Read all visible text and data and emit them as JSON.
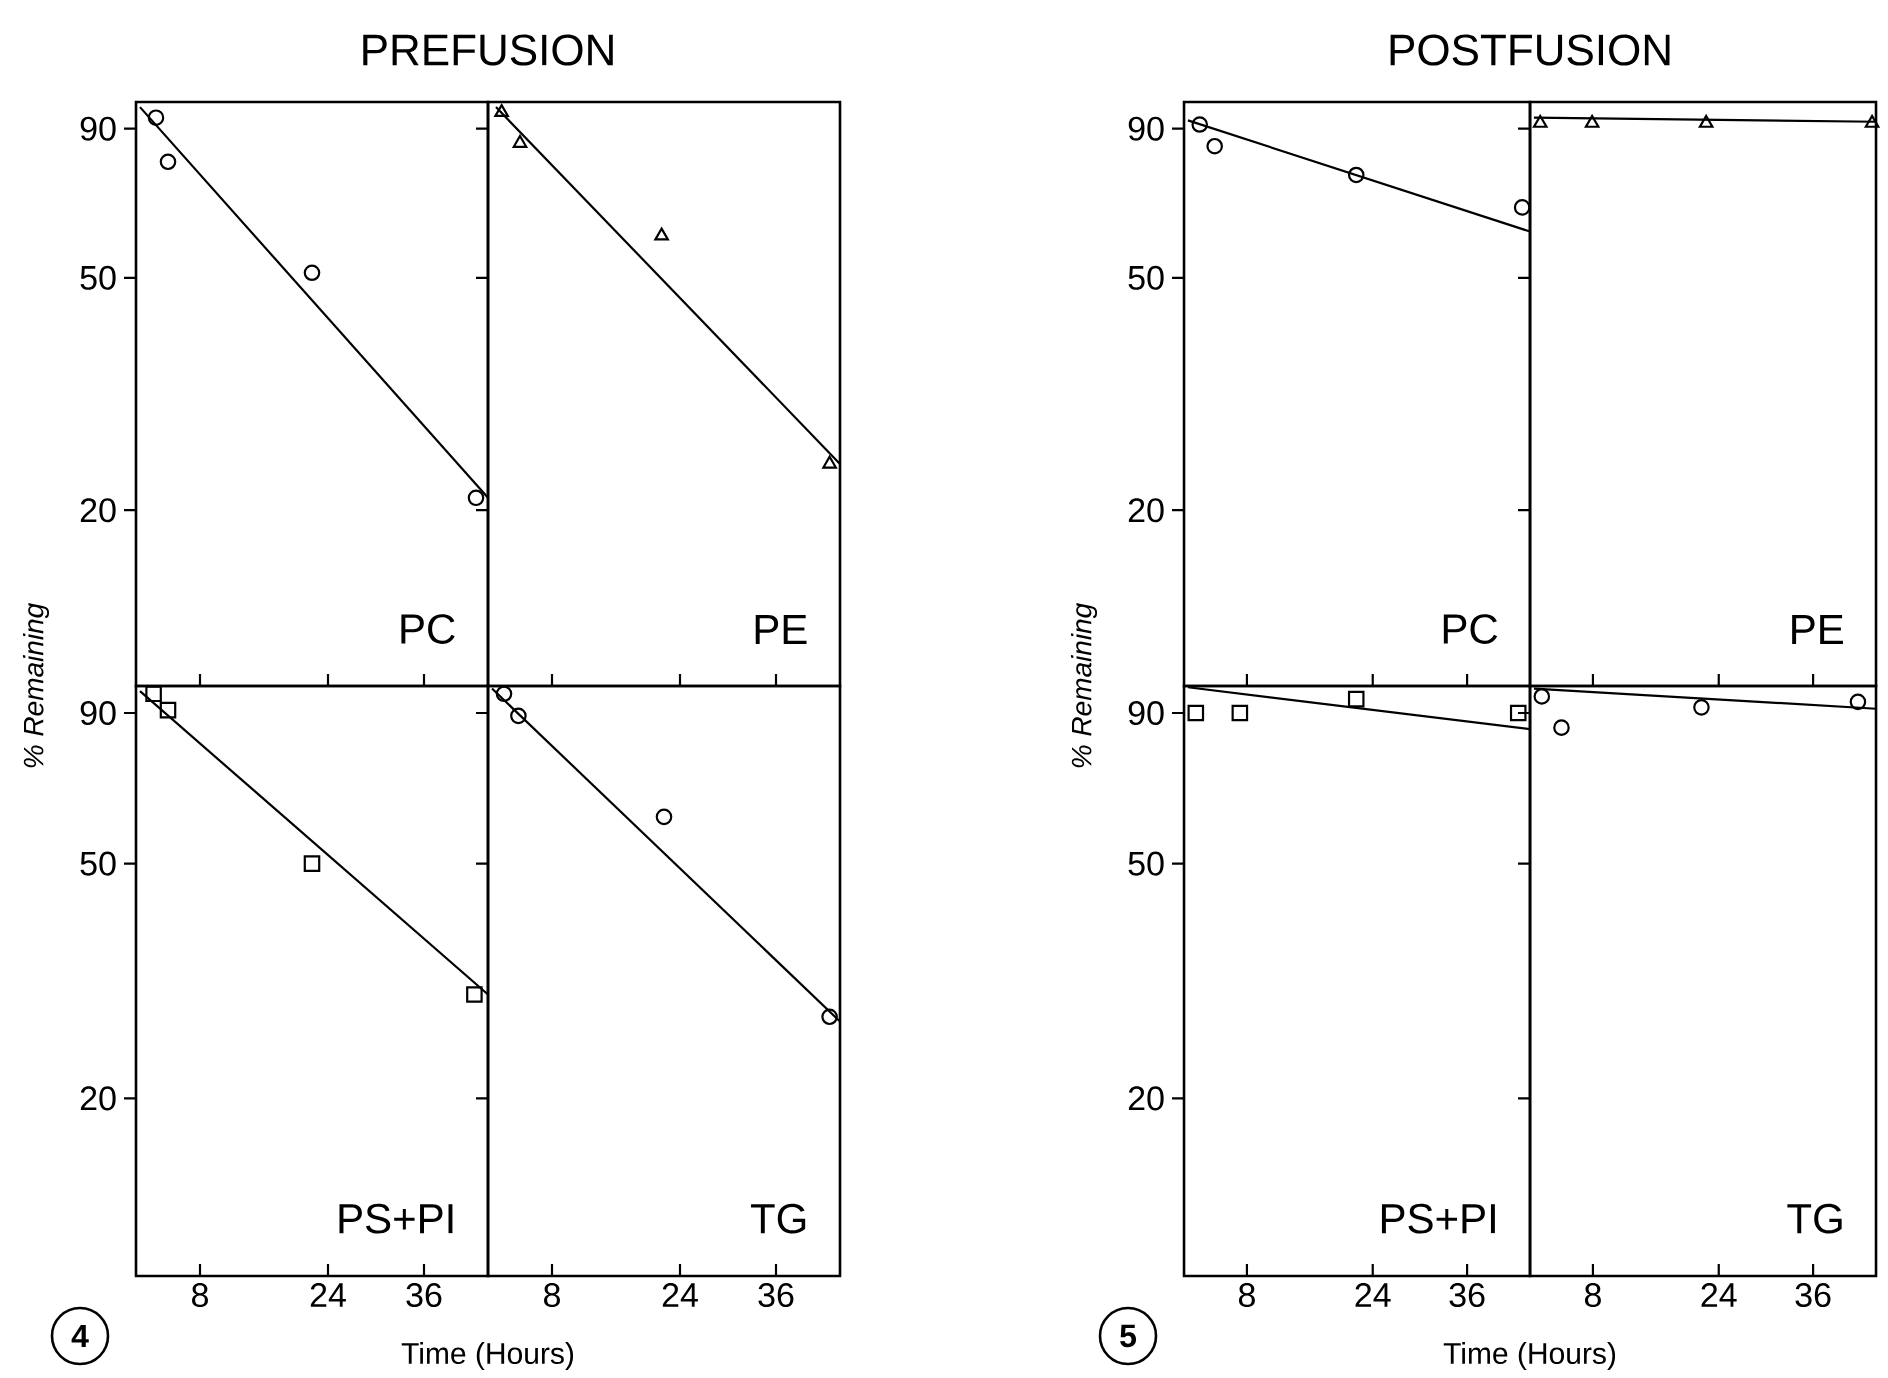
{
  "chart_data": [
    {
      "type": "scatter",
      "title": "PREFUSION",
      "ylabel": "% Remaining",
      "xlim": [
        0,
        44
      ],
      "ylim": [
        10,
        100
      ],
      "log": "y",
      "xticks": [
        8,
        24,
        36
      ],
      "yticks": [
        20,
        50,
        90
      ],
      "tick_labels": "y",
      "annotations": [
        "PC"
      ],
      "series": [
        {
          "marker": "circle",
          "color": "#000000",
          "x": [
            2.5,
            4,
            22,
            42.5
          ],
          "values": [
            94,
            79,
            51,
            21
          ]
        },
        {
          "type": "line",
          "color": "#000000",
          "x": [
            0.5,
            44
          ],
          "values": [
            98,
            21
          ]
        }
      ]
    },
    {
      "type": "scatter",
      "xlim": [
        0,
        44
      ],
      "ylim": [
        10,
        100
      ],
      "log": "y",
      "xticks": [
        8,
        24,
        36
      ],
      "yticks": [
        20,
        50,
        90
      ],
      "tick_labels": false,
      "annotations": [
        "PE"
      ],
      "series": [
        {
          "marker": "triangle",
          "color": "#000000",
          "x": [
            1.7,
            4,
            21.7,
            42.7
          ],
          "values": [
            96,
            85,
            59,
            24
          ]
        },
        {
          "type": "line",
          "color": "#000000",
          "x": [
            1,
            44
          ],
          "values": [
            98,
            24
          ]
        }
      ]
    },
    {
      "type": "scatter",
      "xlabel": "Time (Hours)",
      "xlim": [
        0,
        44
      ],
      "ylim": [
        10,
        100
      ],
      "log": "y",
      "xticks": [
        8,
        24,
        36
      ],
      "yticks": [
        20,
        50,
        90
      ],
      "annotations": [
        "PS+PI",
        "4"
      ],
      "series": [
        {
          "marker": "square",
          "color": "#000000",
          "x": [
            2.2,
            4,
            22,
            42.3
          ],
          "values": [
            97,
            91,
            50,
            30
          ]
        },
        {
          "type": "line",
          "color": "#000000",
          "x": [
            0.5,
            44
          ],
          "values": [
            98,
            30
          ]
        }
      ]
    },
    {
      "type": "scatter",
      "xlim": [
        0,
        44
      ],
      "ylim": [
        10,
        100
      ],
      "log": "y",
      "xticks": [
        8,
        24,
        36
      ],
      "yticks": [
        20,
        50,
        90
      ],
      "tick_labels": "x",
      "annotations": [
        "TG"
      ],
      "series": [
        {
          "marker": "circle",
          "color": "#000000",
          "x": [
            2,
            3.8,
            22,
            42.7
          ],
          "values": [
            97,
            89,
            60,
            27.5
          ]
        },
        {
          "type": "line",
          "color": "#000000",
          "x": [
            0.5,
            44
          ],
          "values": [
            99,
            27
          ]
        }
      ]
    },
    {
      "type": "scatter",
      "title": "POSTFUSION",
      "ylabel": "% Remaining",
      "xlim": [
        0,
        44
      ],
      "ylim": [
        10,
        100
      ],
      "log": "y",
      "xticks": [
        8,
        24,
        36
      ],
      "yticks": [
        20,
        50,
        90
      ],
      "tick_labels": "y",
      "annotations": [
        "PC"
      ],
      "series": [
        {
          "marker": "circle",
          "color": "#000000",
          "x": [
            2,
            3.9,
            21.9,
            43
          ],
          "values": [
            91.5,
            84,
            75,
            66
          ]
        },
        {
          "type": "line",
          "color": "#000000",
          "x": [
            0.5,
            44
          ],
          "values": [
            93,
            60
          ]
        }
      ]
    },
    {
      "type": "scatter",
      "xlim": [
        0,
        44
      ],
      "ylim": [
        10,
        100
      ],
      "log": "y",
      "xticks": [
        8,
        24,
        36
      ],
      "yticks": [
        20,
        50,
        90
      ],
      "tick_labels": false,
      "annotations": [
        "PE"
      ],
      "series": [
        {
          "marker": "triangle",
          "color": "#000000",
          "x": [
            1.3,
            7.9,
            22.4,
            43.5
          ],
          "values": [
            92,
            92,
            92,
            92
          ]
        },
        {
          "type": "line",
          "color": "#000000",
          "x": [
            0.5,
            44
          ],
          "values": [
            94,
            92.5
          ]
        }
      ]
    },
    {
      "type": "scatter",
      "xlabel": "Time (Hours)",
      "xlim": [
        0,
        44
      ],
      "ylim": [
        10,
        100
      ],
      "log": "y",
      "xticks": [
        8,
        24,
        36
      ],
      "yticks": [
        20,
        50,
        90
      ],
      "annotations": [
        "PS+PI",
        "5"
      ],
      "series": [
        {
          "marker": "square",
          "color": "#000000",
          "x": [
            1.5,
            7.1,
            21.9,
            42.5
          ],
          "values": [
            90,
            90,
            95,
            90
          ]
        },
        {
          "type": "line",
          "color": "#000000",
          "x": [
            0.5,
            44
          ],
          "values": [
            99.5,
            84.5
          ]
        }
      ]
    },
    {
      "type": "scatter",
      "xlim": [
        0,
        44
      ],
      "ylim": [
        10,
        100
      ],
      "log": "y",
      "xticks": [
        8,
        24,
        36
      ],
      "yticks": [
        20,
        50,
        90
      ],
      "tick_labels": "x",
      "annotations": [
        "TG"
      ],
      "series": [
        {
          "marker": "circle",
          "color": "#000000",
          "x": [
            1.5,
            4,
            21.8,
            41.7
          ],
          "values": [
            96,
            85,
            92,
            94
          ]
        },
        {
          "type": "line",
          "color": "#000000",
          "x": [
            0.5,
            44
          ],
          "values": [
            99,
            91.5
          ]
        }
      ]
    }
  ]
}
